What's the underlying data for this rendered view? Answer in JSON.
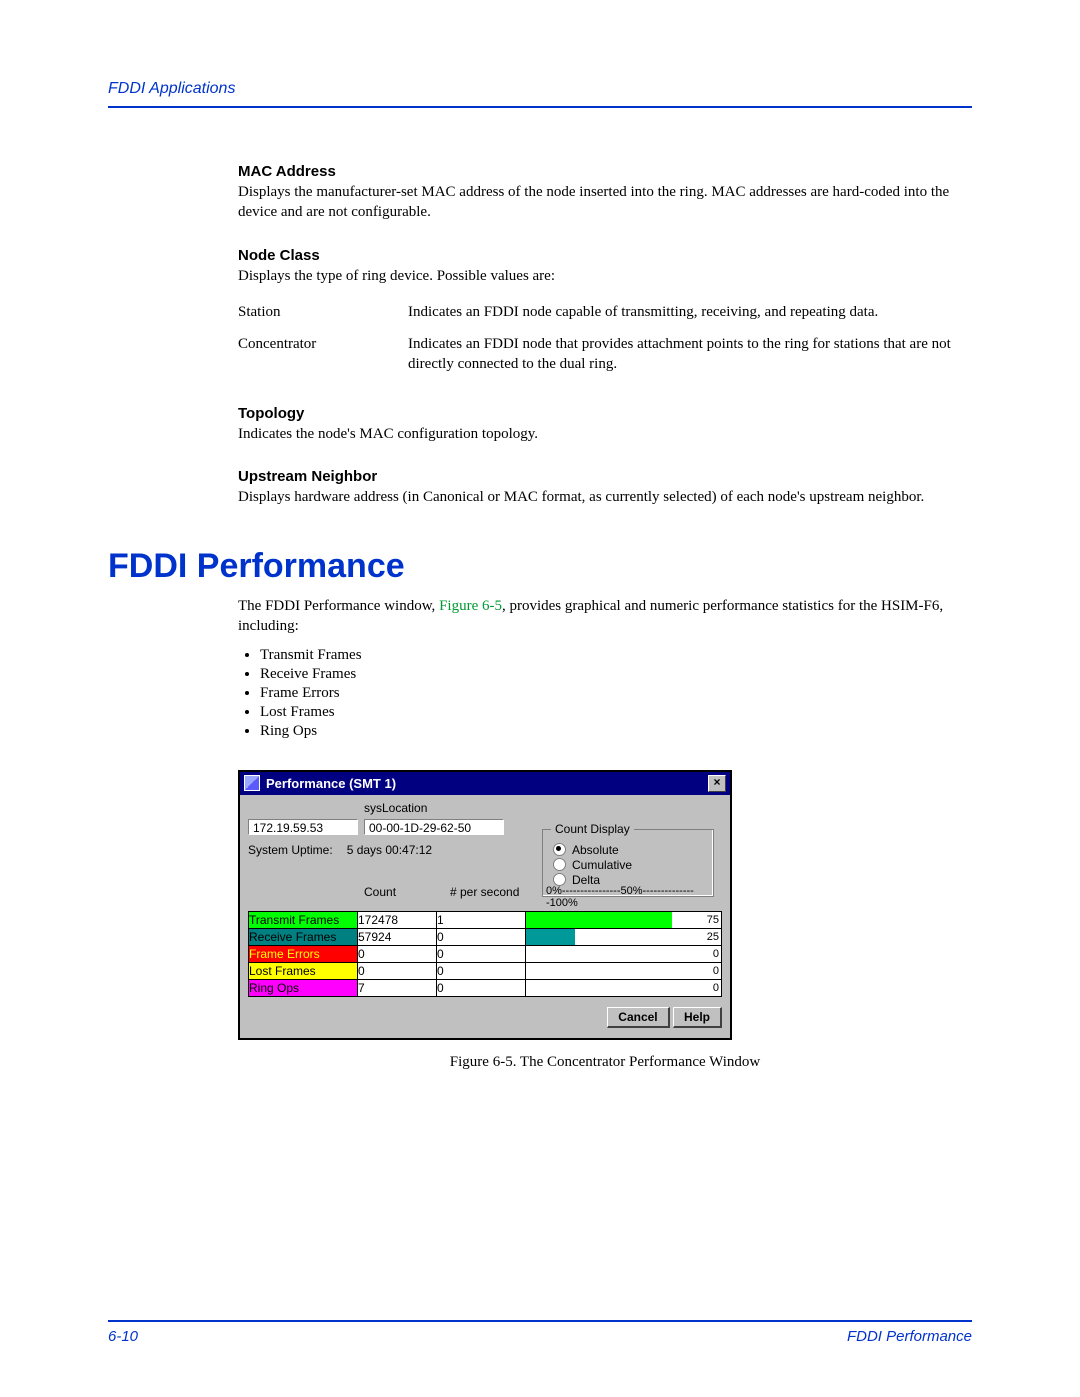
{
  "page": {
    "running_head": "FDDI Applications",
    "page_number": "6-10",
    "footer_right": "FDDI Performance"
  },
  "sections": {
    "mac_address": {
      "title": "MAC Address",
      "text": "Displays the manufacturer-set MAC address of the node inserted into the ring. MAC addresses are hard-coded into the device and are not configurable."
    },
    "node_class": {
      "title": "Node Class",
      "intro": "Displays the type of ring device. Possible values are:",
      "defs": {
        "station_term": "Station",
        "station_def": "Indicates an FDDI node capable of transmitting, receiving, and repeating data.",
        "concentrator_term": "Concentrator",
        "concentrator_def": "Indicates an FDDI node that provides attachment points to the ring for stations that are not directly connected to the dual ring."
      }
    },
    "topology": {
      "title": "Topology",
      "text": "Indicates the node's MAC configuration topology."
    },
    "upstream": {
      "title": "Upstream Neighbor",
      "text": "Displays hardware address (in Canonical or MAC format, as currently selected) of each node's upstream neighbor."
    }
  },
  "perf": {
    "heading": "FDDI Performance",
    "intro_pre": "The FDDI Performance window, ",
    "intro_ref": "Figure 6-5",
    "intro_post": ", provides graphical and numeric performance statistics for the HSIM-F6, including:",
    "bullets": {
      "b0": "Transmit Frames",
      "b1": "Receive Frames",
      "b2": "Frame Errors",
      "b3": "Lost Frames",
      "b4": "Ring Ops"
    }
  },
  "window": {
    "title": "Performance (SMT 1)",
    "close_glyph": "×",
    "sys_location_label": "sysLocation",
    "ip": "172.19.59.53",
    "mac": "00-00-1D-29-62-50",
    "uptime_label": "System Uptime:",
    "uptime_value": "5 days 00:47:12",
    "count_display": {
      "legend": "Count Display",
      "absolute": "Absolute",
      "cumulative": "Cumulative",
      "delta": "Delta",
      "selected": "absolute"
    },
    "columns": {
      "count": "Count",
      "rate": "# per second",
      "scale": "0%----------------50%---------------100%"
    },
    "metrics": {
      "transmit": {
        "label": "Transmit Frames",
        "count": "172478",
        "rate": "1",
        "bar_pct": 75,
        "bar_color": "#00ff00",
        "bar_val": "75",
        "row_color": "#00ff00",
        "text_color": "#000000"
      },
      "receive": {
        "label": "Receive Frames",
        "count": "57924",
        "rate": "0",
        "bar_pct": 25,
        "bar_color": "#009999",
        "bar_val": "25",
        "row_color": "#008080",
        "text_color": "#000000"
      },
      "errors": {
        "label": "Frame Errors",
        "count": "0",
        "rate": "0",
        "bar_pct": 0,
        "bar_color": "#ff0000",
        "bar_val": "0",
        "row_color": "#ff0000",
        "text_color": "#ffff00"
      },
      "lost": {
        "label": "Lost Frames",
        "count": "0",
        "rate": "0",
        "bar_pct": 0,
        "bar_color": "#ffff00",
        "bar_val": "0",
        "row_color": "#ffff00",
        "text_color": "#000000"
      },
      "ringops": {
        "label": "Ring Ops",
        "count": "7",
        "rate": "0",
        "bar_pct": 0,
        "bar_color": "#ff00ff",
        "bar_val": "0",
        "row_color": "#ff00ff",
        "text_color": "#000000"
      }
    },
    "buttons": {
      "cancel": "Cancel",
      "help": "Help"
    }
  },
  "caption": "Figure 6-5. The Concentrator Performance Window",
  "colors": {
    "accent": "#0033cc",
    "figref": "#009933",
    "win_bg": "#c0c0c0",
    "titlebar": "#000080"
  }
}
